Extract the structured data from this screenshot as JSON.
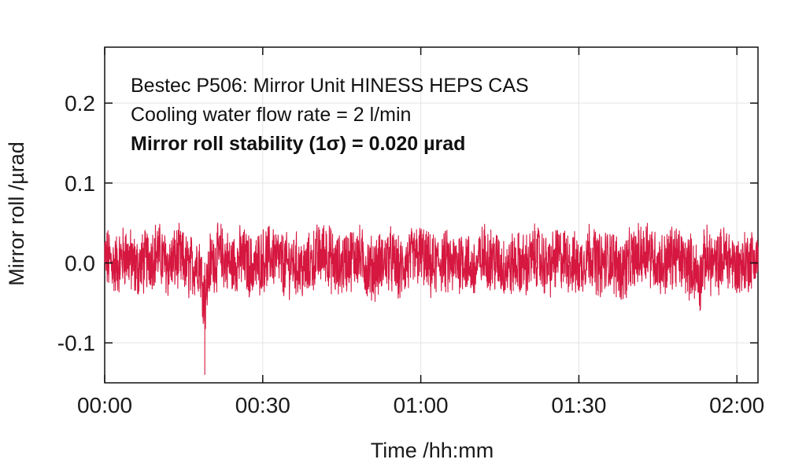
{
  "chart_data": {
    "type": "line",
    "title": "",
    "xlabel": "Time /hh:mm",
    "ylabel": "Mirror roll /µrad",
    "xlim": [
      "00:00",
      "02:04"
    ],
    "ylim": [
      -0.15,
      0.27
    ],
    "x_ticks": [
      "00:00",
      "00:30",
      "01:00",
      "01:30",
      "02:00"
    ],
    "y_ticks": [
      -0.1,
      0.0,
      0.1,
      0.2
    ],
    "y_tick_labels": [
      "-0.1",
      "0.0",
      "0.1",
      "0.2"
    ],
    "grid": true,
    "legend": "none",
    "annotations": [
      "Bestec P506: Mirror Unit HINESS HEPS CAS",
      "Cooling water flow rate = 2 l/min",
      "Mirror roll stability (1σ) = 0.020 µrad"
    ],
    "series": [
      {
        "color": "#d6173f",
        "x": [
          "00:00",
          "00:02",
          "00:04",
          "00:06",
          "00:08",
          "00:10",
          "00:12",
          "00:14",
          "00:16",
          "00:18",
          "00:19",
          "00:20",
          "00:22",
          "00:24",
          "00:26",
          "00:28",
          "00:30",
          "00:32",
          "00:34",
          "00:36",
          "00:38",
          "00:40",
          "00:42",
          "00:44",
          "00:46",
          "00:48",
          "00:50",
          "00:52",
          "00:54",
          "00:56",
          "00:58",
          "01:00",
          "01:02",
          "01:04",
          "01:06",
          "01:08",
          "01:10",
          "01:12",
          "01:14",
          "01:16",
          "01:18",
          "01:20",
          "01:22",
          "01:24",
          "01:26",
          "01:28",
          "01:30",
          "01:32",
          "01:34",
          "01:36",
          "01:38",
          "01:40",
          "01:42",
          "01:43",
          "01:44",
          "01:46",
          "01:48",
          "01:50",
          "01:52",
          "01:53",
          "01:54",
          "01:56",
          "01:58",
          "02:00",
          "02:02",
          "02:04"
        ],
        "y": [
          0.02,
          -0.01,
          0.03,
          -0.02,
          0.01,
          0.04,
          -0.01,
          0.02,
          -0.02,
          0.01,
          -0.14,
          0.0,
          0.03,
          -0.01,
          0.02,
          -0.02,
          0.01,
          0.03,
          -0.01,
          0.0,
          -0.03,
          0.02,
          0.04,
          -0.02,
          0.01,
          0.03,
          -0.02,
          -0.01,
          0.02,
          -0.03,
          0.01,
          0.03,
          -0.02,
          0.01,
          -0.01,
          0.02,
          -0.03,
          0.03,
          0.01,
          -0.02,
          0.0,
          -0.01,
          0.03,
          -0.02,
          0.02,
          0.01,
          -0.02,
          0.04,
          -0.01,
          0.02,
          -0.03,
          0.01,
          0.03,
          0.05,
          0.02,
          -0.01,
          0.03,
          0.0,
          -0.02,
          -0.06,
          0.02,
          -0.01,
          0.03,
          -0.02,
          0.01,
          0.02
        ]
      }
    ]
  }
}
